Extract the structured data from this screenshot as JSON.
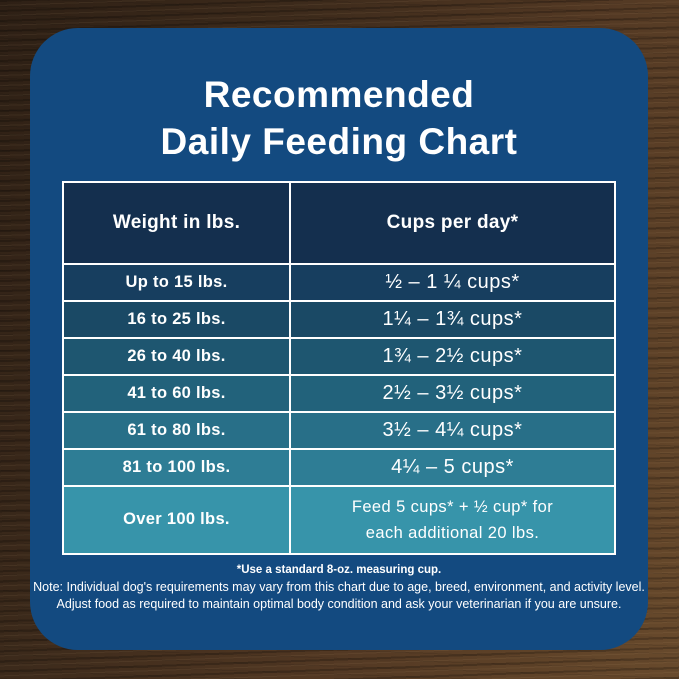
{
  "title": {
    "line1": "Recommended",
    "line2": "Daily Feeding Chart"
  },
  "table": {
    "col1_header": "Weight in lbs.",
    "col2_header": "Cups per day*",
    "rows": [
      {
        "weight": "Up to 15 lbs.",
        "cups": "½ – 1 ¼ cups*"
      },
      {
        "weight": "16 to 25 lbs.",
        "cups": "1¼ – 1¾ cups*"
      },
      {
        "weight": "26 to 40 lbs.",
        "cups": "1¾ – 2½ cups*"
      },
      {
        "weight": "41 to 60 lbs.",
        "cups": "2½ – 3½ cups*"
      },
      {
        "weight": "61 to 80 lbs.",
        "cups": "3½ – 4¼ cups*"
      },
      {
        "weight": "81 to 100 lbs.",
        "cups": "4¼ – 5 cups*"
      },
      {
        "weight": "Over 100 lbs.",
        "cups": "Feed 5 cups* + ½ cup* for\neach additional 20 lbs."
      }
    ]
  },
  "footnotes": {
    "measuring_cup": "*Use a standard 8-oz. measuring cup.",
    "note_line1": "Note: Individual dog's requirements may vary from this chart due to age, breed, environment, and activity level.",
    "note_line2": "Adjust food as required to maintain optimal body condition and ask your veterinarian if you are unsure."
  },
  "colors": {
    "card_bg": "#134a80",
    "header_cell_bg": "#142f4e",
    "cell_border": "#ffffff",
    "text": "#ffffff",
    "row_bgs": [
      "#173e5f",
      "#1a4965",
      "#1e5670",
      "#22627b",
      "#286f88",
      "#2e7d95",
      "#3794aa"
    ]
  },
  "chart_data": {
    "type": "table",
    "title": "Recommended Daily Feeding Chart",
    "columns": [
      "Weight in lbs.",
      "Cups per day*"
    ],
    "rows": [
      [
        "Up to 15 lbs.",
        "½ – 1 ¼ cups*"
      ],
      [
        "16 to 25 lbs.",
        "1¼ – 1¾ cups*"
      ],
      [
        "26 to 40 lbs.",
        "1¾ – 2½ cups*"
      ],
      [
        "41 to 60 lbs.",
        "2½ – 3½ cups*"
      ],
      [
        "61 to 80 lbs.",
        "3½ – 4¼ cups*"
      ],
      [
        "81 to 100 lbs.",
        "4¼ – 5 cups*"
      ],
      [
        "Over 100 lbs.",
        "Feed 5 cups* + ½ cup* for each additional 20 lbs."
      ]
    ],
    "footnote": "*Use a standard 8-oz. measuring cup."
  }
}
